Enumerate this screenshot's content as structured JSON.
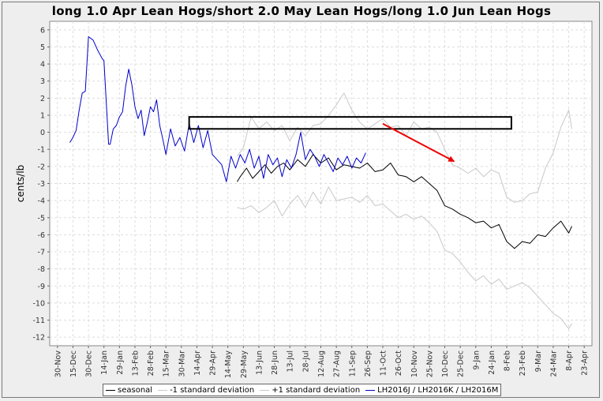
{
  "chart_data": {
    "type": "line",
    "title": "long 1.0 Apr Lean Hogs/short 2.0 May Lean Hogs/long 1.0 Jun Lean Hogs",
    "xlabel": "",
    "ylabel": "cents/lb",
    "ylim": [
      -12.5,
      6.5
    ],
    "y_ticks": [
      6,
      5,
      4,
      3,
      2,
      1,
      0,
      -1,
      -2,
      -3,
      -4,
      -5,
      -6,
      -7,
      -8,
      -9,
      -10,
      -11,
      -12
    ],
    "x_ticks": [
      "30-Nov",
      "15-Dec",
      "30-Dec",
      "14-Jan",
      "29-Jan",
      "13-Feb",
      "28-Feb",
      "15-Mar",
      "30-Mar",
      "14-Apr",
      "29-Apr",
      "14-May",
      "29-May",
      "13-Jun",
      "28-Jun",
      "13-Jul",
      "28-Jul",
      "12-Aug",
      "27-Aug",
      "11-Sep",
      "26-Sep",
      "11-Oct",
      "26-Oct",
      "10-Nov",
      "25-Nov",
      "10-Dec",
      "25-Dec",
      "9-Jan",
      "24-Jan",
      "8-Feb",
      "23-Feb",
      "9-Mar",
      "24-Mar",
      "8-Apr",
      "23-Apr"
    ],
    "grid": true,
    "legend_position": "bottom",
    "series": [
      {
        "name": "seasonal",
        "color": "#000000",
        "x": [
          11.6,
          11.8,
          12.2,
          12.6,
          13.0,
          13.4,
          13.8,
          14.2,
          14.6,
          15.0,
          15.5,
          16.0,
          16.5,
          17.0,
          17.5,
          18.0,
          18.5,
          19.0,
          19.5,
          20.0,
          20.5,
          21.0,
          21.5,
          22.0,
          22.5,
          23.0,
          23.5,
          24.0,
          24.5,
          25.0,
          25.5,
          26.0,
          26.5,
          27.0,
          27.5,
          28.0,
          28.5,
          29.0,
          29.5,
          30.0,
          30.5,
          31.0,
          31.5,
          32.0,
          32.5,
          33.0,
          33.2
        ],
        "values": [
          -2.9,
          -2.6,
          -2.1,
          -2.7,
          -2.3,
          -1.9,
          -2.4,
          -2.0,
          -1.8,
          -2.2,
          -1.6,
          -2.0,
          -1.3,
          -1.8,
          -1.5,
          -2.2,
          -1.9,
          -2.0,
          -2.1,
          -1.8,
          -2.3,
          -2.2,
          -1.8,
          -2.5,
          -2.6,
          -2.9,
          -2.6,
          -3.0,
          -3.4,
          -4.3,
          -4.5,
          -4.8,
          -5.0,
          -5.3,
          -5.2,
          -5.6,
          -5.4,
          -6.4,
          -6.8,
          -6.4,
          -6.5,
          -6.0,
          -6.1,
          -5.6,
          -5.2,
          -5.9,
          -5.5
        ]
      },
      {
        "name": "-1 standard deviation",
        "color": "#c8c8c8",
        "x": [
          11.6,
          12.0,
          12.5,
          13.0,
          13.5,
          14.0,
          14.5,
          15.0,
          15.5,
          16.0,
          16.5,
          17.0,
          17.5,
          18.0,
          18.5,
          19.0,
          19.5,
          20.0,
          20.5,
          21.0,
          21.5,
          22.0,
          22.5,
          23.0,
          23.5,
          24.0,
          24.5,
          25.0,
          25.5,
          26.0,
          26.5,
          27.0,
          27.5,
          28.0,
          28.5,
          29.0,
          29.5,
          30.0,
          30.5,
          31.0,
          31.5,
          32.0,
          32.5,
          33.0,
          33.2
        ],
        "values": [
          -4.4,
          -4.5,
          -4.3,
          -4.7,
          -4.4,
          -4.0,
          -4.9,
          -4.2,
          -3.7,
          -4.4,
          -3.5,
          -4.2,
          -3.2,
          -4.0,
          -3.9,
          -3.8,
          -4.1,
          -3.7,
          -4.3,
          -4.2,
          -4.6,
          -5.0,
          -4.8,
          -5.1,
          -4.9,
          -5.3,
          -5.8,
          -6.9,
          -7.1,
          -7.6,
          -8.2,
          -8.7,
          -8.4,
          -8.9,
          -8.6,
          -9.2,
          -9.0,
          -8.8,
          -9.1,
          -9.6,
          -10.1,
          -10.6,
          -10.9,
          -11.5,
          -11.2
        ]
      },
      {
        "name": "+1 standard deviation",
        "color": "#c8c8c8",
        "x": [
          11.6,
          12.0,
          12.5,
          13.0,
          13.5,
          14.0,
          14.5,
          15.0,
          15.5,
          16.0,
          16.5,
          17.0,
          17.5,
          18.0,
          18.5,
          19.0,
          19.5,
          20.0,
          20.5,
          21.0,
          21.5,
          22.0,
          22.5,
          23.0,
          23.5,
          24.0,
          24.5,
          25.0,
          25.5,
          26.0,
          26.5,
          27.0,
          27.5,
          28.0,
          28.5,
          29.0,
          29.5,
          30.0,
          30.5,
          31.0,
          31.5,
          32.0,
          32.5,
          33.0,
          33.2
        ],
        "values": [
          -1.4,
          -0.9,
          0.9,
          0.2,
          0.6,
          0.1,
          0.4,
          -0.5,
          0.3,
          -0.2,
          0.4,
          0.5,
          1.0,
          1.6,
          2.3,
          1.3,
          0.6,
          0.2,
          0.5,
          0.8,
          0.3,
          0.4,
          -0.2,
          0.6,
          0.2,
          0.3,
          0.0,
          -1.0,
          -1.9,
          -2.1,
          -2.4,
          -2.1,
          -2.6,
          -2.2,
          -2.4,
          -3.8,
          -4.1,
          -4.0,
          -3.6,
          -3.5,
          -2.1,
          -1.2,
          0.3,
          1.3,
          0.2
        ]
      },
      {
        "name": "LH2016J / LH2016K / LH2016M",
        "color": "#0000cc",
        "x": [
          0.8,
          1.0,
          1.2,
          1.4,
          1.6,
          1.8,
          2.0,
          2.3,
          2.6,
          2.9,
          3.0,
          3.3,
          3.4,
          3.6,
          3.8,
          4.0,
          4.2,
          4.4,
          4.6,
          4.8,
          5.0,
          5.2,
          5.4,
          5.6,
          5.8,
          6.0,
          6.2,
          6.4,
          6.6,
          6.8,
          7.0,
          7.3,
          7.6,
          7.9,
          8.2,
          8.5,
          8.8,
          9.1,
          9.4,
          9.7,
          10.0,
          10.3,
          10.6,
          10.9,
          11.2,
          11.5,
          11.8,
          12.1,
          12.4,
          12.7,
          13.0,
          13.3,
          13.6,
          13.9,
          14.2,
          14.5,
          14.8,
          15.1,
          15.4,
          15.7,
          16.0,
          16.3,
          16.6,
          16.9,
          17.2,
          17.5,
          17.8,
          18.1,
          18.4,
          18.7,
          19.0,
          19.3,
          19.6,
          19.9
        ],
        "values": [
          -0.6,
          -0.3,
          0.1,
          1.3,
          2.3,
          2.4,
          5.6,
          5.4,
          4.8,
          4.3,
          4.2,
          -0.7,
          -0.7,
          0.2,
          0.4,
          0.9,
          1.2,
          2.7,
          3.7,
          2.8,
          1.5,
          0.8,
          1.3,
          -0.2,
          0.6,
          1.5,
          1.2,
          1.9,
          0.4,
          -0.4,
          -1.3,
          0.2,
          -0.8,
          -0.3,
          -1.1,
          0.5,
          -0.6,
          0.4,
          -0.9,
          0.1,
          -1.3,
          -1.6,
          -1.9,
          -2.9,
          -1.4,
          -2.1,
          -1.3,
          -1.8,
          -1.0,
          -2.1,
          -1.4,
          -2.7,
          -1.3,
          -1.9,
          -1.5,
          -2.6,
          -1.6,
          -2.1,
          -1.3,
          0.0,
          -1.6,
          -1.0,
          -1.4,
          -2.0,
          -1.3,
          -1.8,
          -2.3,
          -1.5,
          -1.9,
          -1.4,
          -2.1,
          -1.5,
          -1.8,
          -1.2
        ]
      }
    ],
    "annotations": [
      {
        "type": "rectangle",
        "x0": 8.5,
        "x1": 29.3,
        "y0": 0.2,
        "y1": 0.9,
        "color": "#000000"
      },
      {
        "type": "arrow",
        "x0": 21.0,
        "y0": 0.5,
        "x1": 25.6,
        "y1": -1.7,
        "color": "#ee0000"
      }
    ]
  },
  "legend": {
    "items": [
      "seasonal",
      "-1 standard deviation",
      "+1 standard deviation",
      "LH2016J / LH2016K / LH2016M"
    ],
    "colors": [
      "#000000",
      "#c8c8c8",
      "#c8c8c8",
      "#0000cc"
    ]
  }
}
